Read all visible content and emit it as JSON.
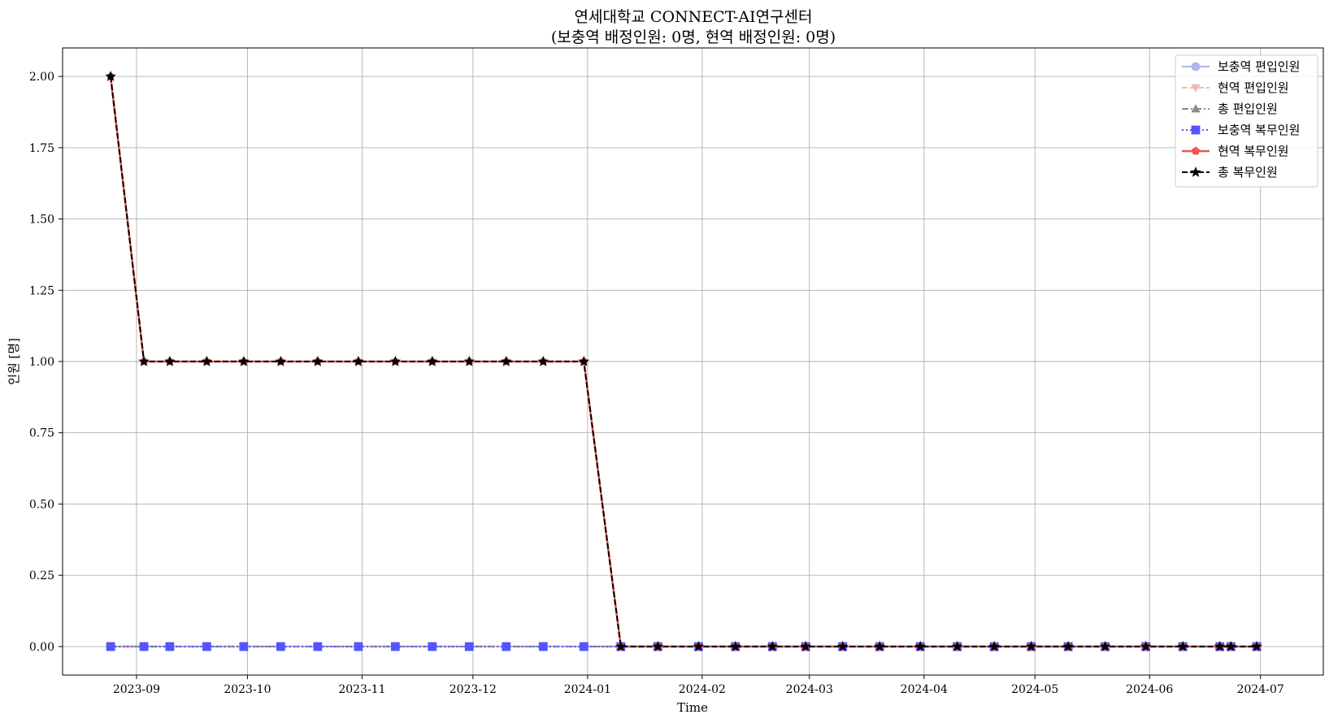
{
  "chart_data": {
    "type": "line",
    "title_line1": "연세대학교 CONNECT-AI연구센터",
    "title_line2": "(보충역 배정인원: 0명, 현역 배정인원: 0명)",
    "xlabel": "Time",
    "ylabel": "인원 [명]",
    "xlim": [
      "2023-08-12",
      "2024-07-18"
    ],
    "ylim": [
      -0.1,
      2.1
    ],
    "x_ticks": [
      "2023-09-01",
      "2023-10-01",
      "2023-11-01",
      "2023-12-01",
      "2024-01-01",
      "2024-02-01",
      "2024-03-01",
      "2024-04-01",
      "2024-05-01",
      "2024-06-01",
      "2024-07-01"
    ],
    "x_tick_labels": [
      "2023-09",
      "2023-10",
      "2023-11",
      "2023-12",
      "2024-01",
      "2024-02",
      "2024-03",
      "2024-04",
      "2024-05",
      "2024-06",
      "2024-07"
    ],
    "y_ticks": [
      0,
      0.25,
      0.5,
      0.75,
      1.0,
      1.25,
      1.5,
      1.75,
      2.0
    ],
    "y_tick_labels": [
      "0.00",
      "0.25",
      "0.50",
      "0.75",
      "1.00",
      "1.25",
      "1.50",
      "1.75",
      "2.00"
    ],
    "grid": true,
    "legend_position": "top-right",
    "x": [
      "2023-08-25",
      "2023-09-03",
      "2023-09-10",
      "2023-09-20",
      "2023-09-30",
      "2023-10-10",
      "2023-10-20",
      "2023-10-31",
      "2023-11-10",
      "2023-11-20",
      "2023-11-30",
      "2023-12-10",
      "2023-12-20",
      "2023-12-31",
      "2024-01-10",
      "2024-01-20",
      "2024-01-31",
      "2024-02-10",
      "2024-02-20",
      "2024-02-29",
      "2024-03-10",
      "2024-03-20",
      "2024-03-31",
      "2024-04-10",
      "2024-04-20",
      "2024-04-30",
      "2024-05-10",
      "2024-05-20",
      "2024-05-31",
      "2024-06-10",
      "2024-06-20",
      "2024-06-23",
      "2024-06-30"
    ],
    "series": [
      {
        "name": "보충역 편입인원",
        "color": "#b3b3ee",
        "dash": "solid",
        "marker": "circle",
        "markersize": 5,
        "width": 2,
        "values": [
          0,
          0,
          0,
          0,
          0,
          0,
          0,
          0,
          0,
          0,
          0,
          0,
          0,
          0,
          0,
          0,
          0,
          0,
          0,
          0,
          0,
          0,
          0,
          0,
          0,
          0,
          0,
          0,
          0,
          0,
          0,
          0,
          0
        ]
      },
      {
        "name": "현역 편입인원",
        "color": "#f4b9b9",
        "dash": "dashed",
        "marker": "triangle-down",
        "markersize": 5,
        "width": 2,
        "values": [
          0,
          0,
          0,
          0,
          0,
          0,
          0,
          0,
          0,
          0,
          0,
          0,
          0,
          0,
          0,
          0,
          0,
          0,
          0,
          0,
          0,
          0,
          0,
          0,
          0,
          0,
          0,
          0,
          0,
          0,
          0,
          0,
          0
        ]
      },
      {
        "name": "총 편입인원",
        "color": "#8c8c8c",
        "dash": "dashdot",
        "marker": "triangle-up",
        "markersize": 5,
        "width": 2,
        "values": [
          0,
          0,
          0,
          0,
          0,
          0,
          0,
          0,
          0,
          0,
          0,
          0,
          0,
          0,
          0,
          0,
          0,
          0,
          0,
          0,
          0,
          0,
          0,
          0,
          0,
          0,
          0,
          0,
          0,
          0,
          0,
          0,
          0
        ]
      },
      {
        "name": "보충역 복무인원",
        "color": "#5555ff",
        "dash": "dotted",
        "marker": "square",
        "markersize": 5,
        "width": 2,
        "values": [
          0,
          0,
          0,
          0,
          0,
          0,
          0,
          0,
          0,
          0,
          0,
          0,
          0,
          0,
          0,
          0,
          0,
          0,
          0,
          0,
          0,
          0,
          0,
          0,
          0,
          0,
          0,
          0,
          0,
          0,
          0,
          0,
          0
        ]
      },
      {
        "name": "현역 복무인원",
        "color": "#f05555",
        "dash": "solid",
        "marker": "pentagon",
        "markersize": 5,
        "width": 2.5,
        "values": [
          2,
          1,
          1,
          1,
          1,
          1,
          1,
          1,
          1,
          1,
          1,
          1,
          1,
          1,
          0,
          0,
          0,
          0,
          0,
          0,
          0,
          0,
          0,
          0,
          0,
          0,
          0,
          0,
          0,
          0,
          0,
          0,
          0
        ]
      },
      {
        "name": "총 복무인원",
        "color": "#000000",
        "dash": "dashed",
        "marker": "star",
        "markersize": 6,
        "width": 2,
        "values": [
          2,
          1,
          1,
          1,
          1,
          1,
          1,
          1,
          1,
          1,
          1,
          1,
          1,
          1,
          0,
          0,
          0,
          0,
          0,
          0,
          0,
          0,
          0,
          0,
          0,
          0,
          0,
          0,
          0,
          0,
          0,
          0,
          0
        ]
      }
    ]
  }
}
